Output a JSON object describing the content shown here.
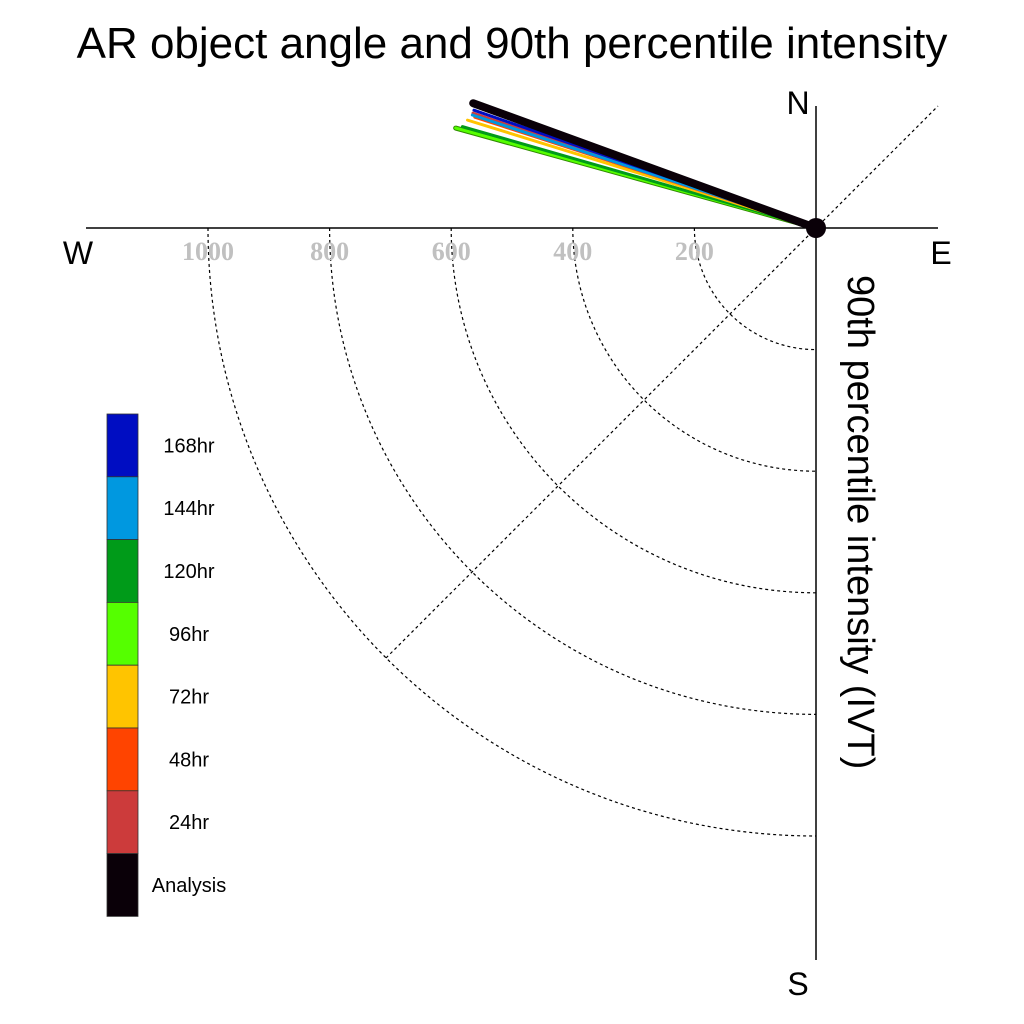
{
  "chart_data": {
    "type": "polar-vector",
    "title": "AR object angle and 90th percentile intensity",
    "compass": {
      "north": "N",
      "south": "S",
      "east": "E",
      "west": "W"
    },
    "radial_axis_label": "90th percentile intensity (IVT)",
    "radial_ticks": [
      200,
      400,
      600,
      800,
      1000
    ],
    "radial_tick_labels": [
      "200",
      "400",
      "600",
      "800",
      "1000"
    ],
    "rlim": [
      0,
      1200
    ],
    "series": [
      {
        "name": "Analysis",
        "color": "#0a0008",
        "angle_deg": 160.0,
        "intensity": 600
      },
      {
        "name": "24hr",
        "color": "#cc3b3b",
        "angle_deg": 161.5,
        "intensity": 595
      },
      {
        "name": "48hr",
        "color": "#ff4400",
        "angle_deg": 162.0,
        "intensity": 590
      },
      {
        "name": "72hr",
        "color": "#ffc400",
        "angle_deg": 162.8,
        "intensity": 600
      },
      {
        "name": "96hr",
        "color": "#55ff00",
        "angle_deg": 164.5,
        "intensity": 615
      },
      {
        "name": "120hr",
        "color": "#009b19",
        "angle_deg": 164.0,
        "intensity": 605
      },
      {
        "name": "144hr",
        "color": "#0098e0",
        "angle_deg": 161.8,
        "intensity": 595
      },
      {
        "name": "168hr",
        "color": "#000dc2",
        "angle_deg": 161.0,
        "intensity": 595
      }
    ],
    "legend": {
      "position": "bottom-left",
      "entries": [
        {
          "label": "168hr",
          "color": "#000dc2"
        },
        {
          "label": "144hr",
          "color": "#0098e0"
        },
        {
          "label": "120hr",
          "color": "#009b19"
        },
        {
          "label": "96hr",
          "color": "#55ff00"
        },
        {
          "label": "72hr",
          "color": "#ffc400"
        },
        {
          "label": "48hr",
          "color": "#ff4400"
        },
        {
          "label": "24hr",
          "color": "#cc3b3b"
        },
        {
          "label": "Analysis",
          "color": "#0a0008"
        }
      ]
    },
    "grid": true
  }
}
